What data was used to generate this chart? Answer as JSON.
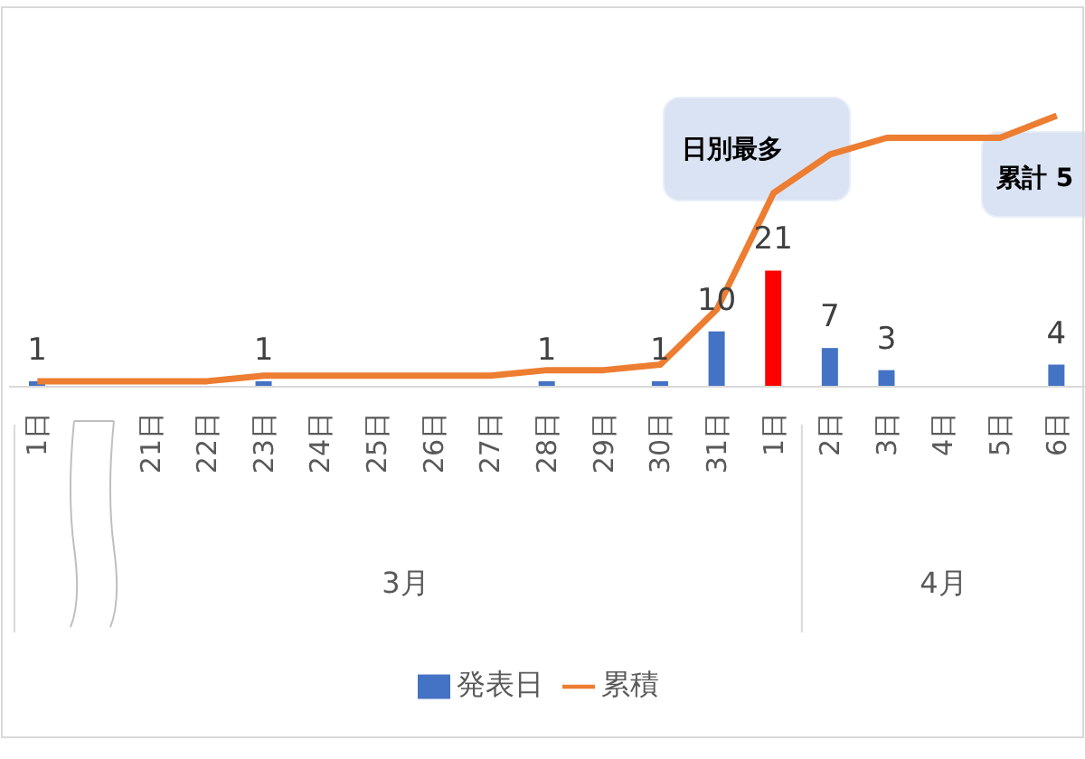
{
  "chart_data": {
    "type": "bar",
    "categories": [
      "1日",
      null,
      "21日",
      "22日",
      "23日",
      "24日",
      "25日",
      "26日",
      "27日",
      "28日",
      "29日",
      "30日",
      "31日",
      "1日",
      "2日",
      "3日",
      "4日",
      "5日",
      "6日"
    ],
    "series": [
      {
        "name": "発表日",
        "color": "#4472c4",
        "value_labels": [
          "1",
          null,
          null,
          null,
          "1",
          null,
          null,
          null,
          null,
          "1",
          null,
          "1",
          "10",
          "21",
          "7",
          "3",
          null,
          null,
          "4"
        ],
        "colors": [
          "#4472c4",
          "#4472c4",
          "#4472c4",
          "#4472c4",
          "#4472c4",
          "#4472c4",
          "#4472c4",
          "#4472c4",
          "#4472c4",
          "#4472c4",
          "#4472c4",
          "#4472c4",
          "#4472c4",
          "#ff0000",
          "#4472c4",
          "#4472c4",
          "#4472c4",
          "#4472c4",
          "#4472c4"
        ],
        "values": [
          1,
          null,
          null,
          null,
          1,
          null,
          null,
          null,
          null,
          1,
          null,
          1,
          10,
          21,
          7,
          3,
          null,
          null,
          4
        ]
      },
      {
        "name": "累積",
        "type": "line",
        "color": "#ed7d31",
        "values": [
          1,
          null,
          1,
          1,
          2,
          2,
          2,
          2,
          2,
          3,
          3,
          4,
          14,
          35,
          42,
          45,
          45,
          45,
          49
        ]
      }
    ],
    "legend": "bottom",
    "marker": "none",
    "annotations": [
      "3月",
      "4月",
      "日別最多",
      "累計 5"
    ]
  }
}
